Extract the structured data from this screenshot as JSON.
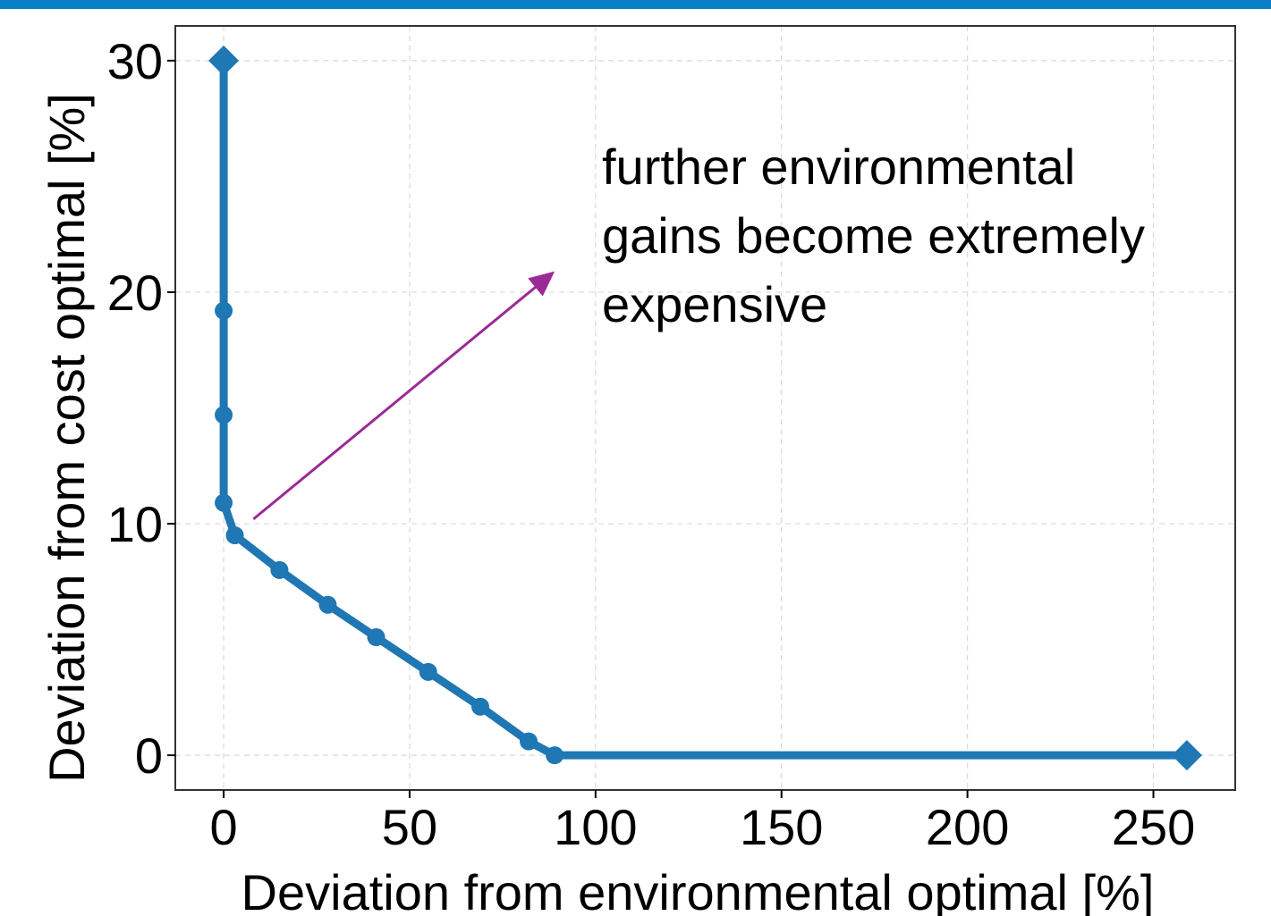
{
  "colors": {
    "top_bar": "#0a7fc9",
    "series": "#1f77b4",
    "annotation_arrow": "#9b2a96",
    "grid": "#d9d9d9",
    "frame": "#333333"
  },
  "chart_data": {
    "type": "line",
    "title": "",
    "xlabel": "Deviation from environmental optimal [%]",
    "ylabel": "Deviation from cost optimal [%]",
    "xlim": [
      -13,
      272
    ],
    "ylim": [
      -1.5,
      31.5
    ],
    "xticks": [
      0,
      50,
      100,
      150,
      200,
      250
    ],
    "yticks": [
      0,
      10,
      20,
      30
    ],
    "xtick_labels": [
      "0",
      "50",
      "100",
      "150",
      "200",
      "250"
    ],
    "ytick_labels": [
      "0",
      "10",
      "20",
      "30"
    ],
    "grid": true,
    "series": [
      {
        "x": [
          0,
          0,
          0,
          0,
          3,
          15,
          28,
          41,
          55,
          69,
          82,
          89,
          259
        ],
        "y": [
          30,
          19.2,
          14.7,
          10.9,
          9.5,
          8.0,
          6.5,
          5.1,
          3.6,
          2.1,
          0.6,
          0,
          0
        ],
        "markers": [
          "diamond",
          "circle",
          "circle",
          "circle",
          "circle",
          "circle",
          "circle",
          "circle",
          "circle",
          "circle",
          "circle",
          "circle",
          "diamond"
        ]
      }
    ],
    "annotation": {
      "text_lines": [
        "further environmental",
        "gains become extremely",
        "expensive"
      ],
      "arrow_from": [
        8,
        10.2
      ],
      "arrow_to": [
        89,
        20.9
      ]
    }
  }
}
